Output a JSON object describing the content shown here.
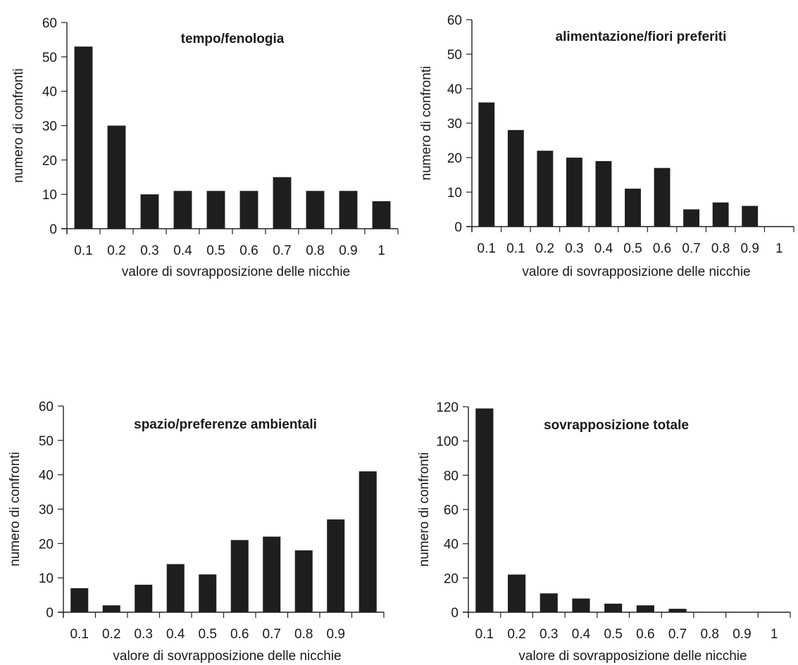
{
  "chart_data": [
    {
      "type": "bar",
      "title": "tempo/fenologia",
      "xlabel": "valore di sovrapposizione delle nicchie",
      "ylabel": "numero di confronti",
      "categories": [
        "0.1",
        "0.2",
        "0.3",
        "0.4",
        "0.5",
        "0.6",
        "0.7",
        "0.8",
        "0.9",
        "1"
      ],
      "values": [
        53,
        30,
        10,
        11,
        11,
        11,
        15,
        11,
        11,
        8
      ],
      "ylim": [
        0,
        60
      ],
      "yticks": [
        "0",
        "10",
        "20",
        "30",
        "40",
        "50",
        "60"
      ],
      "grid": false
    },
    {
      "type": "bar",
      "title": "alimentazione/fiori preferiti",
      "xlabel": "valore di sovrapposizione delle nicchie",
      "ylabel": "numero di confronti",
      "categories": [
        "0.1",
        "0.1",
        "0.2",
        "0.3",
        "0.4",
        "0.5",
        "0.6",
        "0.7",
        "0.8",
        "0.9",
        "1"
      ],
      "values": [
        36,
        28,
        22,
        20,
        19,
        11,
        17,
        5,
        7,
        6,
        0
      ],
      "ylim": [
        0,
        60
      ],
      "yticks": [
        "0",
        "10",
        "20",
        "30",
        "40",
        "50",
        "60"
      ],
      "grid": false
    },
    {
      "type": "bar",
      "title": "spazio/preferenze ambientali",
      "xlabel": "valore di sovrapposizione delle nicchie",
      "ylabel": "numero di confronti",
      "categories": [
        "0.1",
        "0.2",
        "0.3",
        "0.4",
        "0.5",
        "0.6",
        "0.7",
        "0.8",
        "0.9",
        ""
      ],
      "values": [
        7,
        2,
        8,
        14,
        11,
        21,
        22,
        18,
        27,
        41
      ],
      "ylim": [
        0,
        60
      ],
      "yticks": [
        "0",
        "10",
        "20",
        "30",
        "40",
        "50",
        "60"
      ],
      "grid": false
    },
    {
      "type": "bar",
      "title": "sovrapposizione totale",
      "xlabel": "valore di sovrapposizione delle nicchie",
      "ylabel": "numero di confronti",
      "categories": [
        "0.1",
        "0.2",
        "0.3",
        "0.4",
        "0.5",
        "0.6",
        "0.7",
        "0.8",
        "0.9",
        "1"
      ],
      "values": [
        119,
        22,
        11,
        8,
        5,
        4,
        2,
        0,
        0,
        0
      ],
      "ylim": [
        0,
        120
      ],
      "yticks": [
        "0",
        "20",
        "40",
        "60",
        "80",
        "100",
        "120"
      ],
      "grid": false
    }
  ]
}
